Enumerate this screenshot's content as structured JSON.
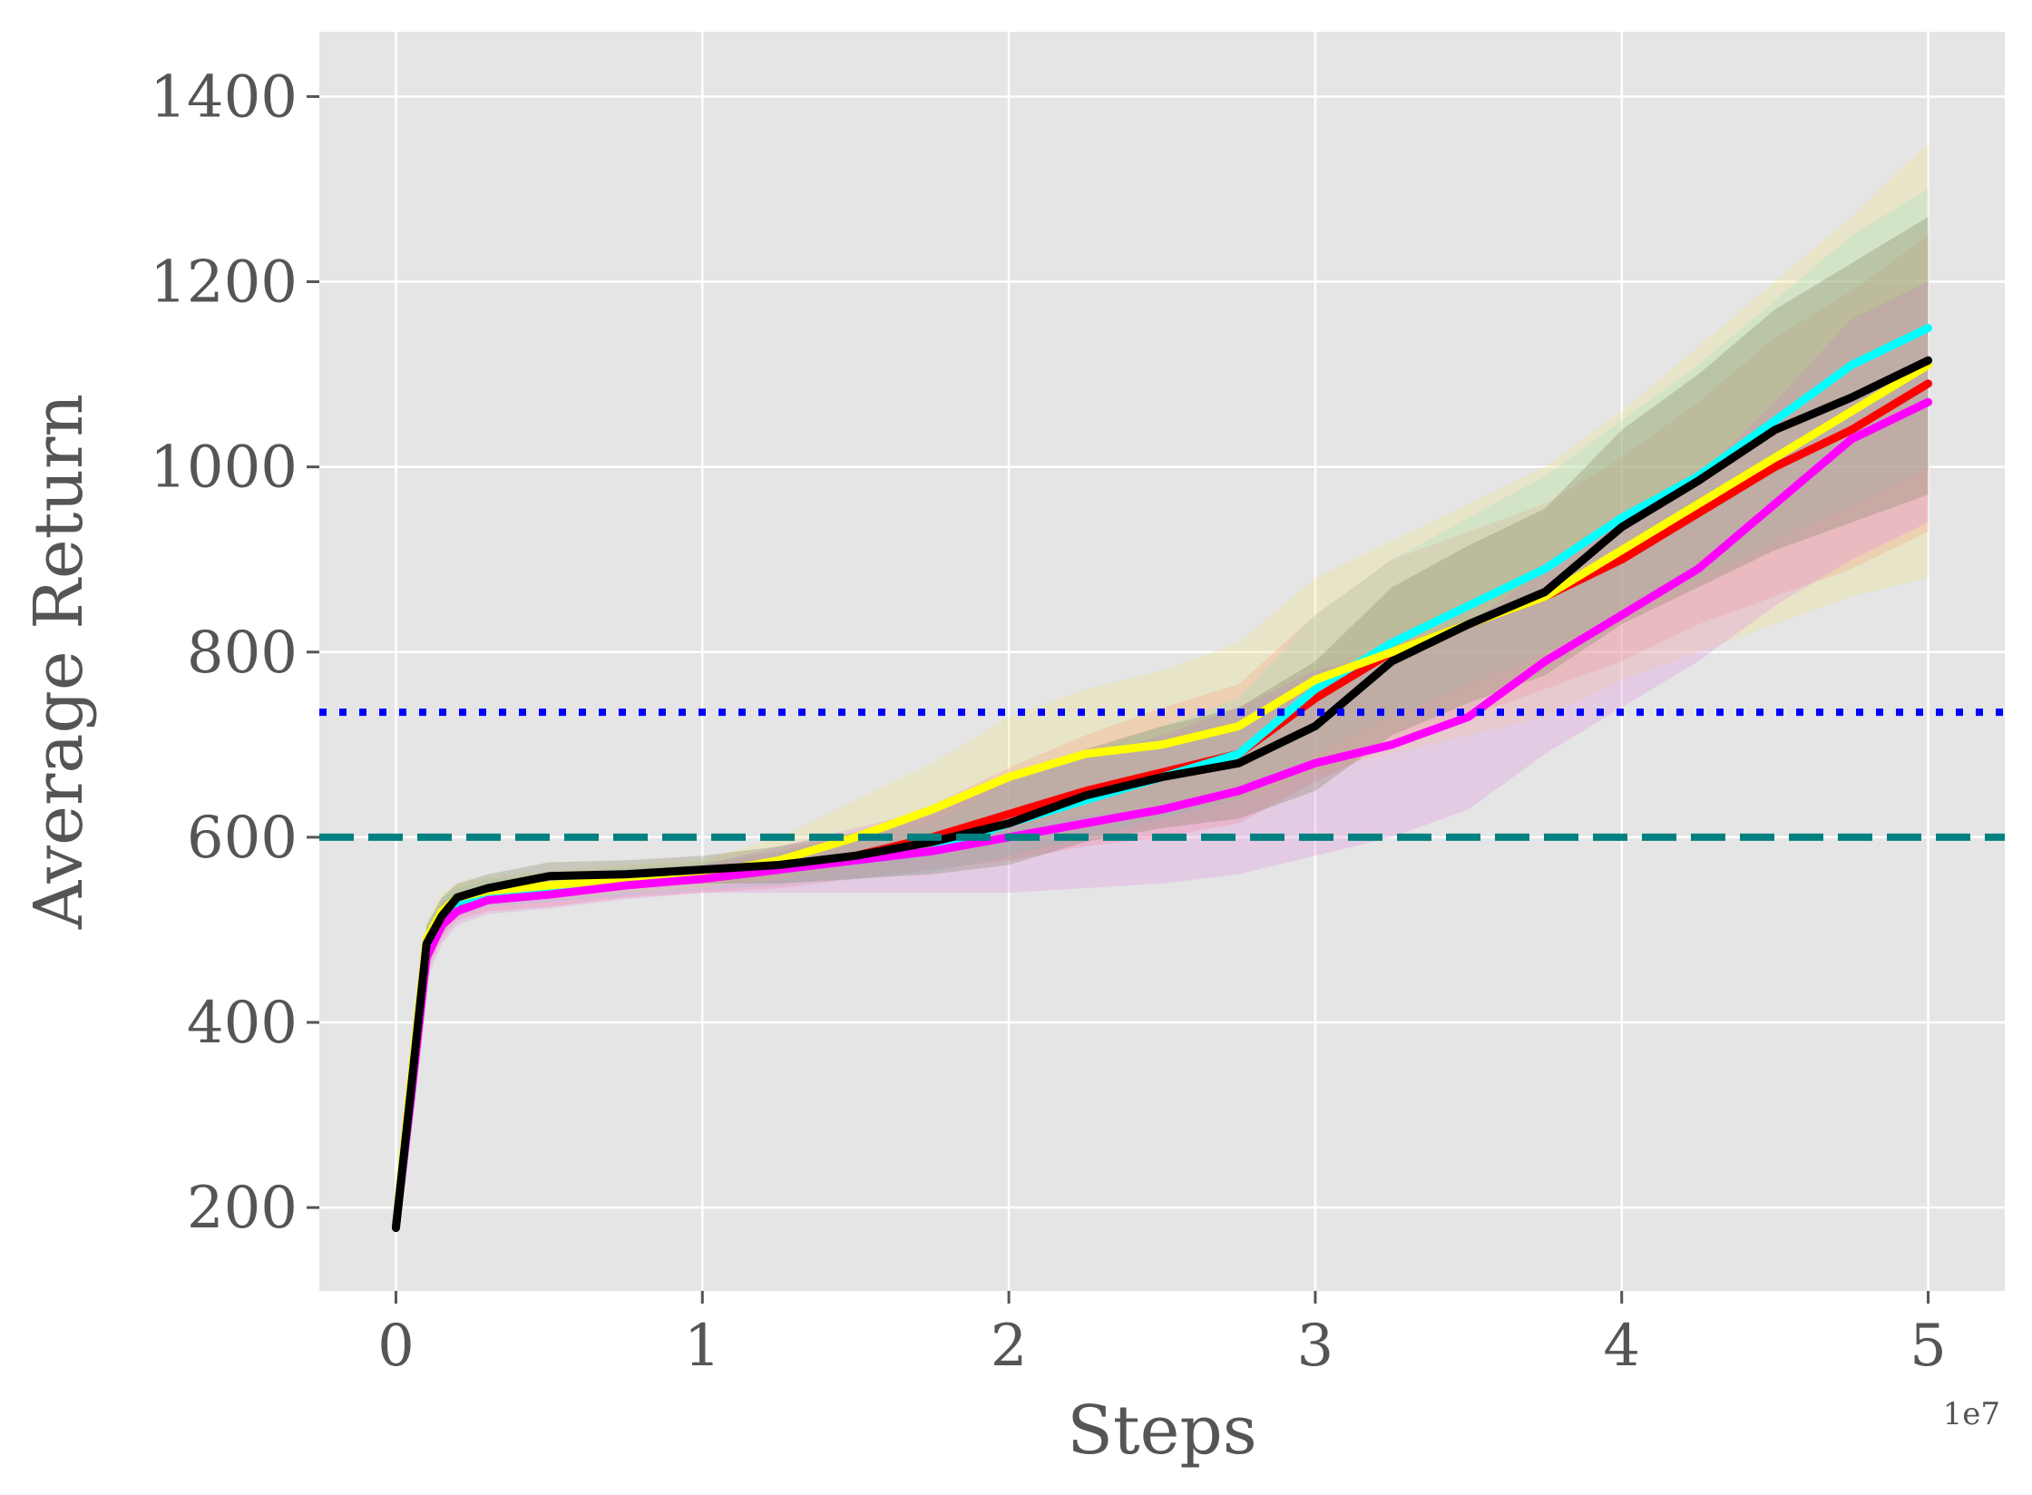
{
  "chart_data": {
    "type": "line",
    "xlabel": "Steps",
    "ylabel": "Average Return",
    "x_offset_label": "1e7",
    "xlim": [
      -0.25,
      5.25
    ],
    "ylim": [
      110,
      1470
    ],
    "xticks": [
      0,
      1,
      2,
      3,
      4,
      5
    ],
    "xtick_labels": [
      "0",
      "1",
      "2",
      "3",
      "4",
      "5"
    ],
    "yticks": [
      200,
      400,
      600,
      800,
      1000,
      1200,
      1400
    ],
    "ytick_labels": [
      "200",
      "400",
      "600",
      "800",
      "1000",
      "1200",
      "1400"
    ],
    "grid": true,
    "background": "#e5e5e5",
    "grid_color": "#ffffff",
    "reference_lines": [
      {
        "y": 735,
        "color": "#0000ff",
        "style": "dotted"
      },
      {
        "y": 600,
        "color": "#008080",
        "style": "dashed"
      }
    ],
    "x": [
      0,
      0.05,
      0.1,
      0.15,
      0.2,
      0.3,
      0.5,
      0.75,
      1.0,
      1.25,
      1.5,
      1.75,
      2.0,
      2.25,
      2.5,
      2.75,
      3.0,
      3.25,
      3.5,
      3.75,
      4.0,
      4.25,
      4.5,
      4.75,
      5.0
    ],
    "series": [
      {
        "color": "#ff0000",
        "band_color": "#ff8080",
        "values": [
          180,
          330,
          480,
          510,
          525,
          535,
          540,
          550,
          555,
          565,
          580,
          600,
          625,
          650,
          670,
          690,
          750,
          800,
          830,
          860,
          900,
          950,
          1000,
          1040,
          1090
        ],
        "band_lower": [
          175,
          310,
          455,
          490,
          510,
          520,
          525,
          535,
          540,
          545,
          555,
          565,
          575,
          590,
          600,
          615,
          660,
          700,
          730,
          760,
          790,
          830,
          860,
          890,
          930
        ],
        "band_upper": [
          185,
          350,
          500,
          530,
          540,
          550,
          555,
          565,
          570,
          585,
          605,
          635,
          675,
          710,
          740,
          765,
          840,
          900,
          930,
          960,
          1010,
          1070,
          1140,
          1190,
          1250
        ]
      },
      {
        "color": "#00ffff",
        "band_color": "#80e0e0",
        "values": [
          180,
          335,
          485,
          515,
          530,
          540,
          545,
          552,
          558,
          565,
          575,
          585,
          615,
          640,
          665,
          690,
          760,
          810,
          850,
          890,
          945,
          990,
          1050,
          1110,
          1150
        ],
        "band_lower": [
          175,
          315,
          460,
          495,
          515,
          525,
          530,
          537,
          543,
          548,
          555,
          562,
          580,
          600,
          620,
          640,
          690,
          730,
          765,
          800,
          840,
          880,
          920,
          960,
          1000
        ],
        "band_upper": [
          185,
          355,
          505,
          535,
          545,
          555,
          560,
          567,
          573,
          585,
          600,
          615,
          660,
          690,
          720,
          750,
          840,
          900,
          945,
          990,
          1050,
          1110,
          1180,
          1250,
          1300
        ]
      },
      {
        "color": "#ffff00",
        "band_color": "#f0e080",
        "values": [
          180,
          340,
          490,
          520,
          535,
          542,
          548,
          555,
          560,
          575,
          600,
          630,
          665,
          690,
          700,
          720,
          770,
          800,
          830,
          860,
          910,
          960,
          1010,
          1060,
          1110
        ],
        "band_lower": [
          175,
          320,
          465,
          500,
          520,
          527,
          533,
          540,
          545,
          555,
          570,
          590,
          610,
          625,
          630,
          640,
          670,
          690,
          710,
          730,
          770,
          800,
          830,
          860,
          880
        ],
        "band_upper": [
          185,
          360,
          510,
          540,
          550,
          557,
          563,
          570,
          575,
          600,
          640,
          680,
          730,
          760,
          780,
          810,
          880,
          920,
          960,
          1000,
          1060,
          1130,
          1200,
          1270,
          1350
        ]
      },
      {
        "color": "#ff00ff",
        "band_color": "#e090e0",
        "values": [
          180,
          320,
          470,
          505,
          520,
          532,
          538,
          548,
          555,
          565,
          575,
          585,
          600,
          615,
          630,
          650,
          680,
          700,
          730,
          790,
          840,
          890,
          960,
          1030,
          1070
        ],
        "band_lower": [
          175,
          300,
          445,
          485,
          505,
          517,
          523,
          533,
          540,
          540,
          540,
          540,
          540,
          545,
          550,
          560,
          580,
          600,
          630,
          690,
          740,
          790,
          850,
          900,
          940
        ],
        "band_upper": [
          185,
          340,
          495,
          525,
          535,
          547,
          553,
          563,
          570,
          590,
          610,
          630,
          660,
          685,
          710,
          740,
          780,
          800,
          830,
          890,
          940,
          990,
          1070,
          1160,
          1200
        ]
      },
      {
        "color": "#000000",
        "band_color": "#808060",
        "values": [
          178,
          330,
          485,
          515,
          535,
          545,
          558,
          560,
          565,
          570,
          580,
          595,
          615,
          645,
          665,
          680,
          720,
          790,
          830,
          865,
          935,
          985,
          1040,
          1075,
          1115
        ],
        "band_lower": [
          173,
          310,
          460,
          495,
          520,
          530,
          543,
          545,
          550,
          550,
          555,
          560,
          570,
          595,
          610,
          620,
          650,
          710,
          745,
          775,
          830,
          870,
          910,
          940,
          970
        ],
        "band_upper": [
          183,
          350,
          505,
          535,
          550,
          560,
          573,
          575,
          580,
          590,
          605,
          630,
          660,
          695,
          720,
          740,
          790,
          870,
          915,
          955,
          1040,
          1100,
          1170,
          1220,
          1270
        ]
      }
    ]
  }
}
